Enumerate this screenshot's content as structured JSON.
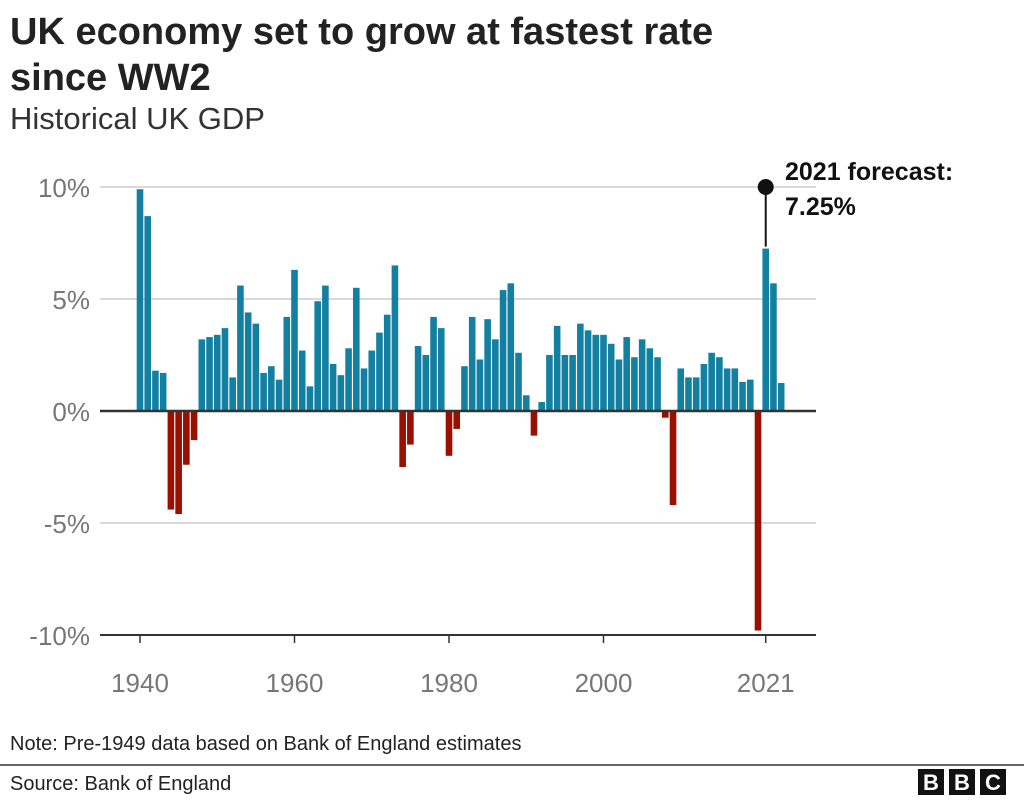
{
  "chart_data": {
    "type": "bar",
    "title": "UK economy set to grow at fastest rate since WW2",
    "title_lines": [
      "UK economy set to grow at fastest rate",
      "since WW2"
    ],
    "subtitle": "Historical UK GDP",
    "xlabel": "",
    "ylabel": "",
    "ylim": [
      -10,
      10
    ],
    "yticks": [
      10,
      5,
      0,
      -5,
      -10
    ],
    "ytick_labels": [
      "10%",
      "5%",
      "0%",
      "-5%",
      "-10%"
    ],
    "xticks": [
      1940,
      1960,
      1980,
      2000,
      2021
    ],
    "xtick_labels": [
      "1940",
      "1960",
      "1980",
      "2000",
      "2021"
    ],
    "grid": true,
    "start_year": 1940,
    "values": [
      9.9,
      8.7,
      1.8,
      1.7,
      -4.4,
      -4.6,
      -2.4,
      -1.3,
      3.2,
      3.3,
      3.4,
      3.7,
      1.5,
      5.6,
      4.4,
      3.9,
      1.7,
      2.0,
      1.4,
      4.2,
      6.3,
      2.7,
      1.1,
      4.9,
      5.6,
      2.1,
      1.6,
      2.8,
      5.5,
      1.9,
      2.7,
      3.5,
      4.3,
      6.5,
      -2.5,
      -1.5,
      2.9,
      2.5,
      4.2,
      3.7,
      -2.0,
      -0.8,
      2.0,
      4.2,
      2.3,
      4.1,
      3.2,
      5.4,
      5.7,
      2.6,
      0.7,
      -1.1,
      0.4,
      2.5,
      3.8,
      2.5,
      2.5,
      3.9,
      3.6,
      3.4,
      3.4,
      3.0,
      2.3,
      3.3,
      2.4,
      3.2,
      2.8,
      2.4,
      -0.3,
      -4.2,
      1.9,
      1.5,
      1.5,
      2.1,
      2.6,
      2.4,
      1.9,
      1.9,
      1.3,
      1.4,
      -9.8,
      7.25,
      5.7,
      1.25
    ],
    "colors": {
      "positive": "#1380A1",
      "negative": "#990F00"
    },
    "annotation": {
      "year": 2021,
      "value": 7.25,
      "lines": [
        "2021 forecast:",
        "7.25%"
      ]
    }
  },
  "footer": {
    "note": "Note: Pre-1949 data based on Bank of England estimates",
    "source": "Source: Bank of England",
    "logo": [
      "B",
      "B",
      "C"
    ]
  }
}
